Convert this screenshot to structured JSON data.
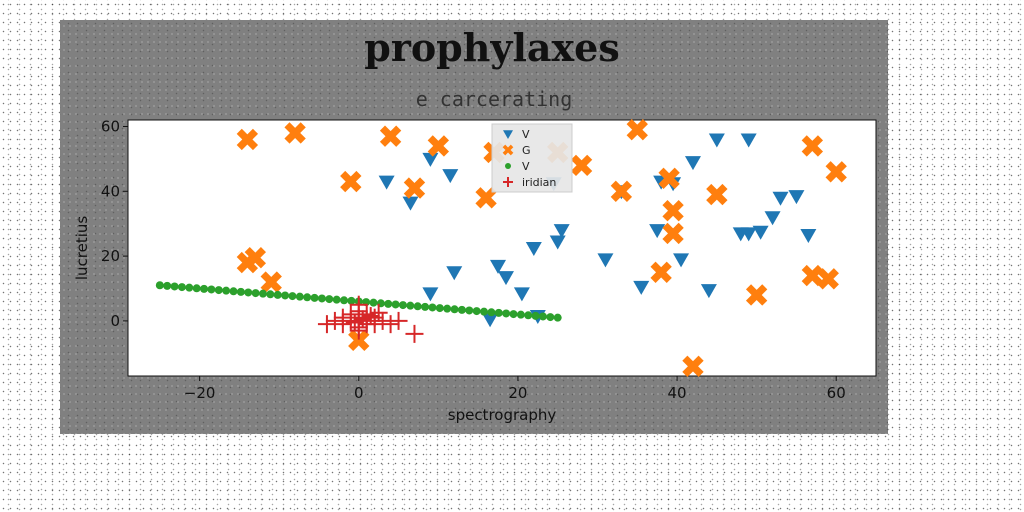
{
  "chart_data": {
    "type": "scatter",
    "title": "prophylaxes",
    "subtitle": "e carcerating",
    "xlabel": "spectrography",
    "ylabel": "lucretius",
    "xlim": [
      -29,
      65
    ],
    "ylim": [
      -17,
      62
    ],
    "xticks": [
      -20,
      0,
      20,
      40,
      60
    ],
    "yticks": [
      0,
      20,
      40,
      60
    ],
    "grid": false,
    "legend_position": "top-center",
    "series": [
      {
        "name": "V",
        "marker": "triangle-down",
        "color": "#1f77b4",
        "points": [
          [
            3.5,
            43
          ],
          [
            6.5,
            36.5
          ],
          [
            9,
            50
          ],
          [
            11.5,
            45
          ],
          [
            12,
            15
          ],
          [
            9,
            8.5
          ],
          [
            16.5,
            0.5
          ],
          [
            17.5,
            17
          ],
          [
            18.5,
            13.5
          ],
          [
            20.5,
            8.5
          ],
          [
            22,
            22.5
          ],
          [
            22.5,
            1.5
          ],
          [
            24.5,
            42.5
          ],
          [
            25,
            24.5
          ],
          [
            25.5,
            28
          ],
          [
            31,
            19
          ],
          [
            33,
            40
          ],
          [
            35.5,
            10.5
          ],
          [
            37.5,
            28
          ],
          [
            38,
            43
          ],
          [
            39.5,
            42.5
          ],
          [
            40.5,
            19
          ],
          [
            42,
            49
          ],
          [
            44,
            9.5
          ],
          [
            45,
            56
          ],
          [
            48,
            27
          ],
          [
            49,
            27
          ],
          [
            49,
            56
          ],
          [
            50.5,
            27.5
          ],
          [
            52,
            32
          ],
          [
            53,
            38
          ],
          [
            55,
            38.5
          ],
          [
            56.5,
            26.5
          ]
        ]
      },
      {
        "name": "G",
        "marker": "x-filled",
        "color": "#ff7f0e",
        "points": [
          [
            -14,
            56
          ],
          [
            -8,
            58
          ],
          [
            -14,
            18
          ],
          [
            -13,
            19.5
          ],
          [
            -11,
            12
          ],
          [
            -1,
            43
          ],
          [
            4,
            57
          ],
          [
            7,
            41
          ],
          [
            10,
            54
          ],
          [
            16,
            38
          ],
          [
            17,
            52
          ],
          [
            25,
            52
          ],
          [
            28,
            48
          ],
          [
            33,
            40
          ],
          [
            35,
            59
          ],
          [
            38,
            15
          ],
          [
            39,
            44
          ],
          [
            39.5,
            34
          ],
          [
            39.5,
            27
          ],
          [
            42,
            -14
          ],
          [
            45,
            39
          ],
          [
            50,
            8
          ],
          [
            57,
            14
          ],
          [
            57,
            54
          ],
          [
            59,
            13
          ],
          [
            60,
            46
          ],
          [
            0,
            -6
          ]
        ]
      },
      {
        "name": "V",
        "marker": "circle",
        "color": "#2ca02c",
        "line": {
          "x_from": -25,
          "y_from": 11,
          "x_to": 25,
          "y_to": 1,
          "count": 55
        }
      },
      {
        "name": "iridian",
        "marker": "plus",
        "color": "#d62728",
        "points": [
          [
            -4,
            -1
          ],
          [
            -3,
            0
          ],
          [
            -2,
            -1
          ],
          [
            -1,
            0
          ],
          [
            -1,
            2
          ],
          [
            0,
            1
          ],
          [
            0,
            3
          ],
          [
            0,
            5
          ],
          [
            0,
            -2
          ],
          [
            1,
            0
          ],
          [
            1,
            2
          ],
          [
            1,
            -1
          ],
          [
            2,
            1
          ],
          [
            2,
            -1
          ],
          [
            3,
            0
          ],
          [
            4,
            -1
          ],
          [
            5,
            0
          ],
          [
            7,
            -4
          ],
          [
            0.5,
            0.5
          ],
          [
            -0.5,
            -0.5
          ],
          [
            1.5,
            1.5
          ],
          [
            -2,
            1
          ],
          [
            2.5,
            2.5
          ],
          [
            0,
            -3
          ]
        ]
      }
    ]
  }
}
